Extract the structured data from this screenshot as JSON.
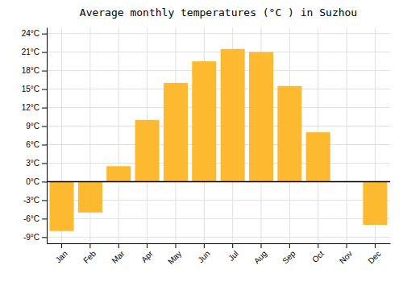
{
  "chart_data": {
    "type": "bar",
    "title": "Average monthly temperatures (°C ) in Suzhou",
    "categories": [
      "Jan",
      "Feb",
      "Mar",
      "Apr",
      "May",
      "Jun",
      "Jul",
      "Aug",
      "Sep",
      "Oct",
      "Nov",
      "Dec"
    ],
    "values": [
      -8.0,
      -5.0,
      2.5,
      10.0,
      16.0,
      19.5,
      21.5,
      21.0,
      15.5,
      8.0,
      0.0,
      -7.0
    ],
    "color": "#FDB930",
    "ylim": [
      -10,
      25
    ],
    "yticks": [
      {
        "value": -9,
        "label": "-9°C"
      },
      {
        "value": -6,
        "label": "-6°C"
      },
      {
        "value": -3,
        "label": "-3°C"
      },
      {
        "value": 0,
        "label": "0°C"
      },
      {
        "value": 3,
        "label": "3°C"
      },
      {
        "value": 6,
        "label": "6°C"
      },
      {
        "value": 9,
        "label": "9°C"
      },
      {
        "value": 12,
        "label": "12°C"
      },
      {
        "value": 15,
        "label": "15°C"
      },
      {
        "value": 18,
        "label": "18°C"
      },
      {
        "value": 21,
        "label": "21°C"
      },
      {
        "value": 24,
        "label": "24°C"
      }
    ],
    "grid": true
  }
}
